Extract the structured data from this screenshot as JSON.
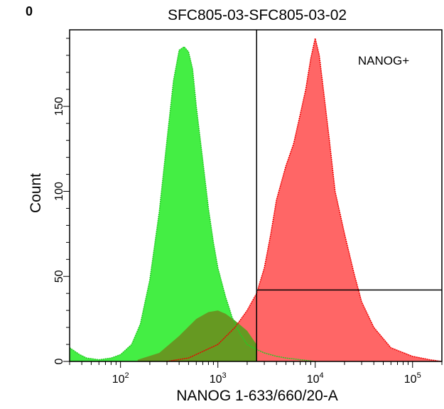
{
  "corner_label": "0",
  "corner_label_color": "#22dd00",
  "chart_data": {
    "type": "area",
    "title": "SFC805-03-SFC805-03-02",
    "xlabel": "NANOG 1-633/660/20-A",
    "ylabel": "Count",
    "x_scale": "log",
    "xlim": [
      30,
      200000
    ],
    "ylim": [
      0,
      195
    ],
    "x_ticks": [
      {
        "value": 100,
        "base": "10",
        "exp": "2"
      },
      {
        "value": 1000,
        "base": "10",
        "exp": "3"
      },
      {
        "value": 10000,
        "base": "10",
        "exp": "4"
      },
      {
        "value": 100000,
        "base": "10",
        "exp": "5"
      }
    ],
    "y_ticks": [
      {
        "value": 0,
        "label": "0"
      },
      {
        "value": 50,
        "label": "50"
      },
      {
        "value": 100,
        "label": "100"
      },
      {
        "value": 150,
        "label": "150"
      }
    ],
    "series": [
      {
        "color": "#44ee44",
        "edge": "#22cc22",
        "x": [
          30,
          38,
          45,
          60,
          80,
          100,
          130,
          160,
          200,
          250,
          300,
          350,
          400,
          450,
          500,
          550,
          600,
          700,
          800,
          900,
          1000,
          1200,
          1400,
          1700,
          2000,
          2500,
          3000,
          4000,
          5000,
          7000,
          10000
        ],
        "y": [
          8,
          4,
          2,
          1,
          2,
          4,
          10,
          22,
          48,
          88,
          130,
          165,
          183,
          185,
          182,
          172,
          150,
          118,
          90,
          70,
          55,
          38,
          26,
          16,
          10,
          7,
          5,
          3,
          2,
          1,
          0
        ]
      },
      {
        "color": "#ff6666",
        "edge": "#ee0000",
        "x": [
          300,
          500,
          1000,
          1500,
          2000,
          2500,
          3000,
          3500,
          4000,
          5000,
          6000,
          7000,
          8000,
          9000,
          10000,
          11000,
          12000,
          14000,
          16000,
          20000,
          25000,
          30000,
          40000,
          60000,
          100000,
          150000,
          200000
        ],
        "y": [
          0,
          2,
          10,
          20,
          30,
          40,
          55,
          75,
          95,
          115,
          128,
          145,
          160,
          178,
          190,
          180,
          162,
          130,
          100,
          75,
          52,
          35,
          20,
          8,
          3,
          1,
          0
        ]
      }
    ],
    "overlap": {
      "color": "#669922",
      "x": [
        150,
        250,
        400,
        600,
        800,
        1000,
        1200,
        1500,
        2000,
        2500
      ],
      "y": [
        1,
        5,
        15,
        25,
        29,
        30,
        28,
        24,
        18,
        10
      ]
    },
    "gate": {
      "label": "NANOG+",
      "x_start": 2500,
      "x_end": 200000,
      "y_threshold": 42
    }
  }
}
